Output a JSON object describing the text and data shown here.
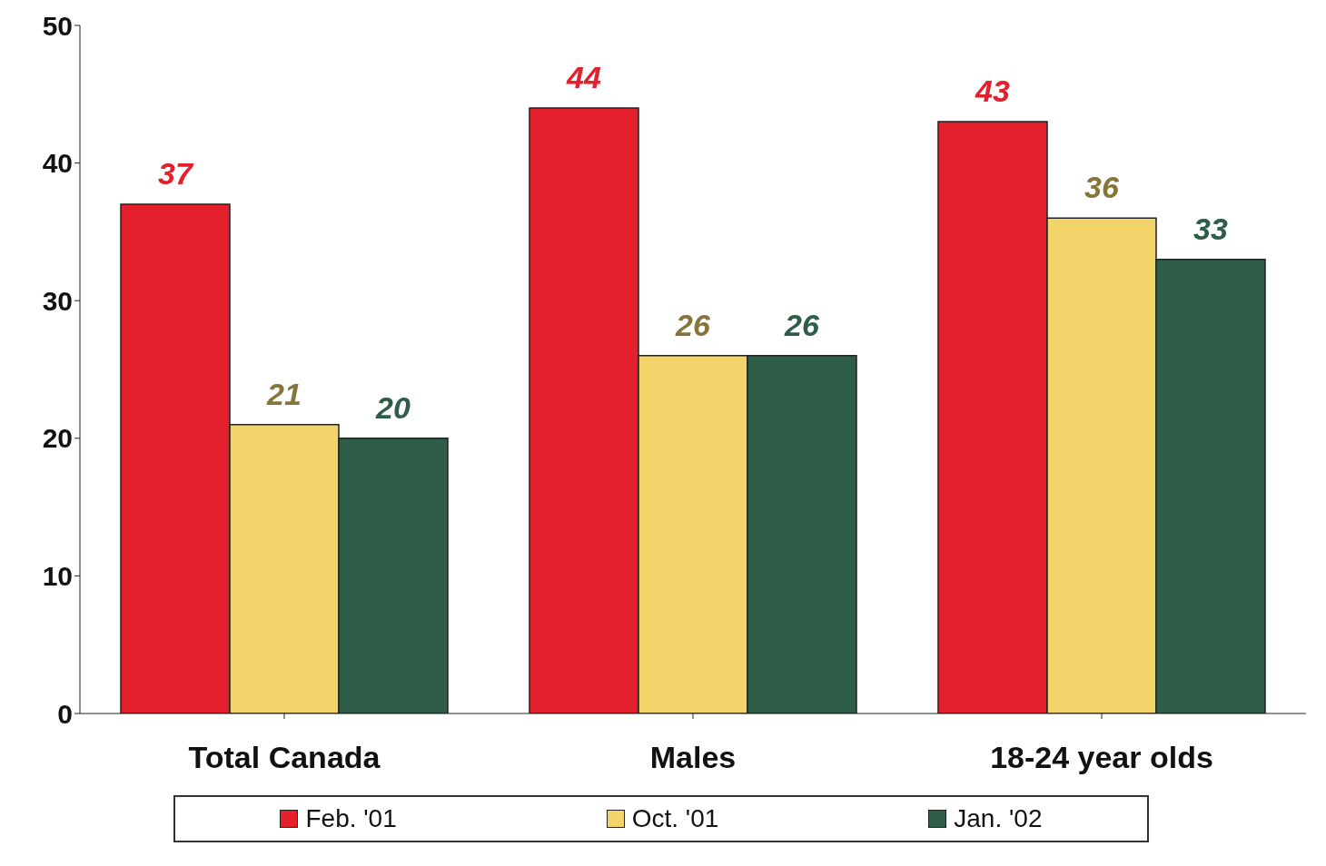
{
  "chart_data": {
    "type": "bar",
    "categories": [
      "Total Canada",
      "Males",
      "18-24 year olds"
    ],
    "series": [
      {
        "name": "Feb. '01",
        "color": "#e3202c",
        "values": [
          37,
          44,
          43
        ]
      },
      {
        "name": "Oct. '01",
        "color": "#f3d46a",
        "values": [
          21,
          26,
          36
        ]
      },
      {
        "name": "Jan. '02",
        "color": "#2e5e48",
        "values": [
          20,
          26,
          33
        ]
      }
    ],
    "ylim": [
      0,
      50
    ],
    "yticks": [
      0,
      10,
      20,
      30,
      40,
      50
    ],
    "grid": false,
    "legend": "bottom",
    "data_labels": true
  }
}
